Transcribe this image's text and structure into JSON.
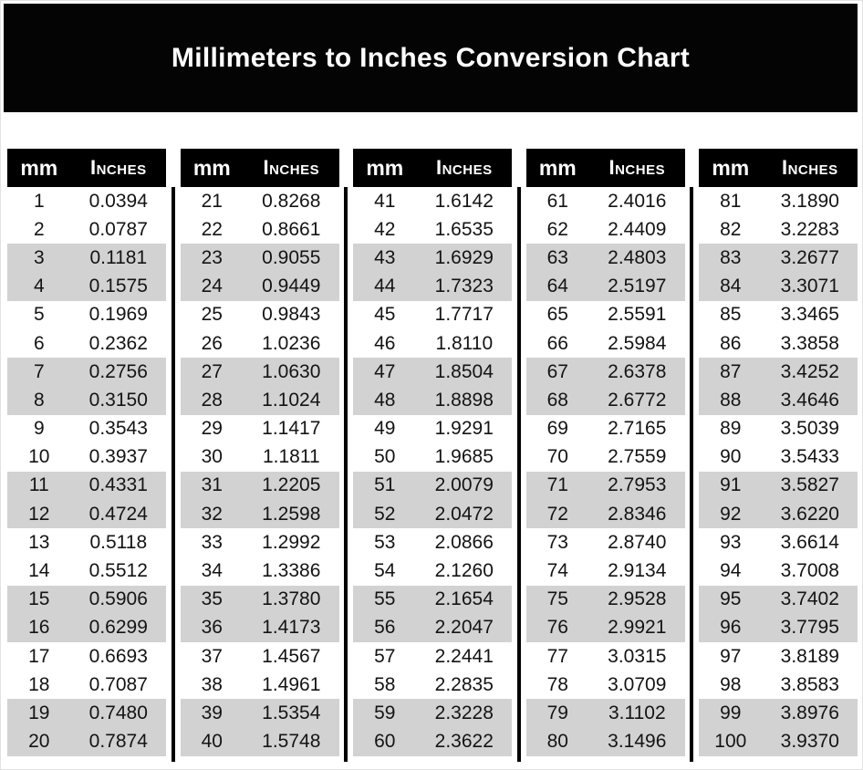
{
  "title": "Millimeters to Inches Conversion Chart",
  "colors": {
    "banner_bg": "#040404",
    "banner_text": "#ffffff",
    "header_bg": "#000000",
    "header_text": "#ffffff",
    "stripe": "#d2d2d2",
    "row_text": "#141414",
    "page_bg": "#ffffff"
  },
  "table": {
    "mm_header": "mm",
    "inches_header": "Inches",
    "groups": [
      {
        "rows": [
          {
            "mm": "1",
            "inches": "0.0394"
          },
          {
            "mm": "2",
            "inches": "0.0787"
          },
          {
            "mm": "3",
            "inches": "0.1181"
          },
          {
            "mm": "4",
            "inches": "0.1575"
          },
          {
            "mm": "5",
            "inches": "0.1969"
          },
          {
            "mm": "6",
            "inches": "0.2362"
          },
          {
            "mm": "7",
            "inches": "0.2756"
          },
          {
            "mm": "8",
            "inches": "0.3150"
          },
          {
            "mm": "9",
            "inches": "0.3543"
          },
          {
            "mm": "10",
            "inches": "0.3937"
          },
          {
            "mm": "11",
            "inches": "0.4331"
          },
          {
            "mm": "12",
            "inches": "0.4724"
          },
          {
            "mm": "13",
            "inches": "0.5118"
          },
          {
            "mm": "14",
            "inches": "0.5512"
          },
          {
            "mm": "15",
            "inches": "0.5906"
          },
          {
            "mm": "16",
            "inches": "0.6299"
          },
          {
            "mm": "17",
            "inches": "0.6693"
          },
          {
            "mm": "18",
            "inches": "0.7087"
          },
          {
            "mm": "19",
            "inches": "0.7480"
          },
          {
            "mm": "20",
            "inches": "0.7874"
          }
        ]
      },
      {
        "rows": [
          {
            "mm": "21",
            "inches": "0.8268"
          },
          {
            "mm": "22",
            "inches": "0.8661"
          },
          {
            "mm": "23",
            "inches": "0.9055"
          },
          {
            "mm": "24",
            "inches": "0.9449"
          },
          {
            "mm": "25",
            "inches": "0.9843"
          },
          {
            "mm": "26",
            "inches": "1.0236"
          },
          {
            "mm": "27",
            "inches": "1.0630"
          },
          {
            "mm": "28",
            "inches": "1.1024"
          },
          {
            "mm": "29",
            "inches": "1.1417"
          },
          {
            "mm": "30",
            "inches": "1.1811"
          },
          {
            "mm": "31",
            "inches": "1.2205"
          },
          {
            "mm": "32",
            "inches": "1.2598"
          },
          {
            "mm": "33",
            "inches": "1.2992"
          },
          {
            "mm": "34",
            "inches": "1.3386"
          },
          {
            "mm": "35",
            "inches": "1.3780"
          },
          {
            "mm": "36",
            "inches": "1.4173"
          },
          {
            "mm": "37",
            "inches": "1.4567"
          },
          {
            "mm": "38",
            "inches": "1.4961"
          },
          {
            "mm": "39",
            "inches": "1.5354"
          },
          {
            "mm": "40",
            "inches": "1.5748"
          }
        ]
      },
      {
        "rows": [
          {
            "mm": "41",
            "inches": "1.6142"
          },
          {
            "mm": "42",
            "inches": "1.6535"
          },
          {
            "mm": "43",
            "inches": "1.6929"
          },
          {
            "mm": "44",
            "inches": "1.7323"
          },
          {
            "mm": "45",
            "inches": "1.7717"
          },
          {
            "mm": "46",
            "inches": "1.8110"
          },
          {
            "mm": "47",
            "inches": "1.8504"
          },
          {
            "mm": "48",
            "inches": "1.8898"
          },
          {
            "mm": "49",
            "inches": "1.9291"
          },
          {
            "mm": "50",
            "inches": "1.9685"
          },
          {
            "mm": "51",
            "inches": "2.0079"
          },
          {
            "mm": "52",
            "inches": "2.0472"
          },
          {
            "mm": "53",
            "inches": "2.0866"
          },
          {
            "mm": "54",
            "inches": "2.1260"
          },
          {
            "mm": "55",
            "inches": "2.1654"
          },
          {
            "mm": "56",
            "inches": "2.2047"
          },
          {
            "mm": "57",
            "inches": "2.2441"
          },
          {
            "mm": "58",
            "inches": "2.2835"
          },
          {
            "mm": "59",
            "inches": "2.3228"
          },
          {
            "mm": "60",
            "inches": "2.3622"
          }
        ]
      },
      {
        "rows": [
          {
            "mm": "61",
            "inches": "2.4016"
          },
          {
            "mm": "62",
            "inches": "2.4409"
          },
          {
            "mm": "63",
            "inches": "2.4803"
          },
          {
            "mm": "64",
            "inches": "2.5197"
          },
          {
            "mm": "65",
            "inches": "2.5591"
          },
          {
            "mm": "66",
            "inches": "2.5984"
          },
          {
            "mm": "67",
            "inches": "2.6378"
          },
          {
            "mm": "68",
            "inches": "2.6772"
          },
          {
            "mm": "69",
            "inches": "2.7165"
          },
          {
            "mm": "70",
            "inches": "2.7559"
          },
          {
            "mm": "71",
            "inches": "2.7953"
          },
          {
            "mm": "72",
            "inches": "2.8346"
          },
          {
            "mm": "73",
            "inches": "2.8740"
          },
          {
            "mm": "74",
            "inches": "2.9134"
          },
          {
            "mm": "75",
            "inches": "2.9528"
          },
          {
            "mm": "76",
            "inches": "2.9921"
          },
          {
            "mm": "77",
            "inches": "3.0315"
          },
          {
            "mm": "78",
            "inches": "3.0709"
          },
          {
            "mm": "79",
            "inches": "3.1102"
          },
          {
            "mm": "80",
            "inches": "3.1496"
          }
        ]
      },
      {
        "rows": [
          {
            "mm": "81",
            "inches": "3.1890"
          },
          {
            "mm": "82",
            "inches": "3.2283"
          },
          {
            "mm": "83",
            "inches": "3.2677"
          },
          {
            "mm": "84",
            "inches": "3.3071"
          },
          {
            "mm": "85",
            "inches": "3.3465"
          },
          {
            "mm": "86",
            "inches": "3.3858"
          },
          {
            "mm": "87",
            "inches": "3.4252"
          },
          {
            "mm": "88",
            "inches": "3.4646"
          },
          {
            "mm": "89",
            "inches": "3.5039"
          },
          {
            "mm": "90",
            "inches": "3.5433"
          },
          {
            "mm": "91",
            "inches": "3.5827"
          },
          {
            "mm": "92",
            "inches": "3.6220"
          },
          {
            "mm": "93",
            "inches": "3.6614"
          },
          {
            "mm": "94",
            "inches": "3.7008"
          },
          {
            "mm": "95",
            "inches": "3.7402"
          },
          {
            "mm": "96",
            "inches": "3.7795"
          },
          {
            "mm": "97",
            "inches": "3.8189"
          },
          {
            "mm": "98",
            "inches": "3.8583"
          },
          {
            "mm": "99",
            "inches": "3.8976"
          },
          {
            "mm": "100",
            "inches": "3.9370"
          }
        ]
      }
    ]
  }
}
